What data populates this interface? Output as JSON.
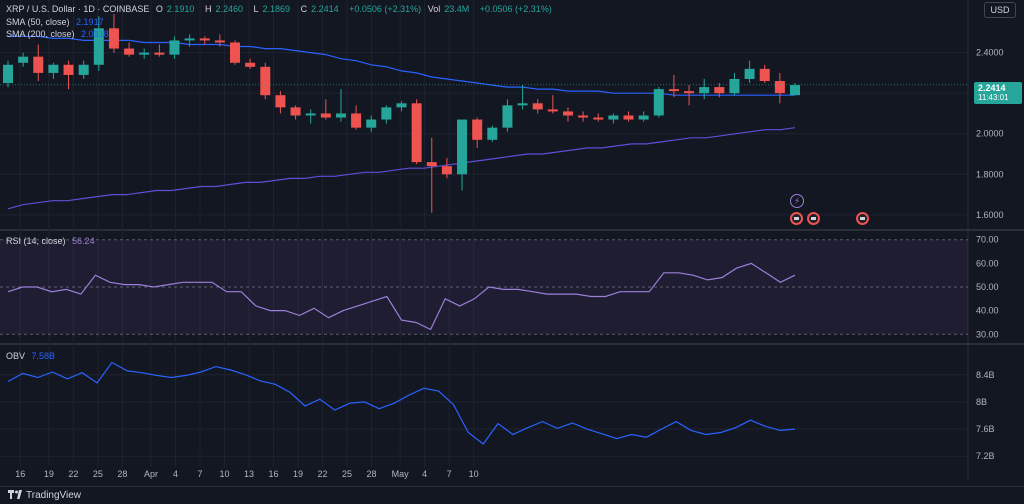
{
  "header": {
    "symbol": "XRP / U.S. Dollar · 1D · COINBASE",
    "o_label": "O",
    "o_value": "2.1910",
    "h_label": "H",
    "h_value": "2.2460",
    "l_label": "L",
    "l_value": "2.1869",
    "c_label": "C",
    "c_value": "2.2414",
    "change": "+0.0506 (+2.31%)",
    "vol_label": "Vol",
    "vol_value": "23.4M",
    "vol_change": "+0.0506 (+2.31%)"
  },
  "indicators": {
    "sma50_label": "SMA (50, close)",
    "sma50_value": "2.1917",
    "sma200_label": "SMA (200, close)",
    "sma200_value": "2.0318",
    "rsi_label": "RSI (14, close)",
    "rsi_value": "56.24",
    "obv_label": "OBV",
    "obv_value": "7.58B"
  },
  "currency": "USD",
  "price_tag": {
    "price": "2.2414",
    "countdown": "11:43:01"
  },
  "footer": {
    "brand": "TradingView"
  },
  "colors": {
    "up": "#26a69a",
    "down": "#ef5350",
    "sma50": "#2962ff",
    "sma200": "#5b4fd8",
    "rsi": "#9c7fd8",
    "obv": "#2962ff"
  },
  "chart_data": [
    {
      "type": "candlestick",
      "title": "XRP / U.S. Dollar · 1D · COINBASE",
      "x_tick_labels": [
        "16",
        "19",
        "22",
        "25",
        "28",
        "Apr",
        "4",
        "7",
        "10",
        "13",
        "16",
        "19",
        "22",
        "25",
        "28",
        "May",
        "4",
        "7",
        "10"
      ],
      "y_tick_labels": [
        "1.6000",
        "1.8000",
        "2.0000",
        "2.2000",
        "2.4000"
      ],
      "ylim": [
        1.55,
        2.62
      ],
      "ohlc": [
        [
          2.25,
          2.36,
          2.23,
          2.34
        ],
        [
          2.35,
          2.4,
          2.33,
          2.38
        ],
        [
          2.38,
          2.44,
          2.26,
          2.3
        ],
        [
          2.3,
          2.35,
          2.27,
          2.34
        ],
        [
          2.34,
          2.36,
          2.22,
          2.29
        ],
        [
          2.29,
          2.36,
          2.27,
          2.34
        ],
        [
          2.34,
          2.58,
          2.31,
          2.52
        ],
        [
          2.52,
          2.59,
          2.4,
          2.42
        ],
        [
          2.42,
          2.45,
          2.38,
          2.39
        ],
        [
          2.39,
          2.42,
          2.37,
          2.4
        ],
        [
          2.4,
          2.44,
          2.38,
          2.39
        ],
        [
          2.39,
          2.48,
          2.37,
          2.46
        ],
        [
          2.46,
          2.49,
          2.43,
          2.47
        ],
        [
          2.47,
          2.48,
          2.44,
          2.46
        ],
        [
          2.46,
          2.49,
          2.43,
          2.45
        ],
        [
          2.45,
          2.46,
          2.34,
          2.35
        ],
        [
          2.35,
          2.37,
          2.32,
          2.33
        ],
        [
          2.33,
          2.35,
          2.17,
          2.19
        ],
        [
          2.19,
          2.21,
          2.1,
          2.13
        ],
        [
          2.13,
          2.14,
          2.07,
          2.09
        ],
        [
          2.09,
          2.12,
          2.05,
          2.1
        ],
        [
          2.1,
          2.17,
          2.07,
          2.08
        ],
        [
          2.08,
          2.22,
          2.06,
          2.1
        ],
        [
          2.1,
          2.14,
          2.02,
          2.03
        ],
        [
          2.03,
          2.09,
          2.01,
          2.07
        ],
        [
          2.07,
          2.14,
          2.05,
          2.13
        ],
        [
          2.13,
          2.16,
          2.11,
          2.15
        ],
        [
          2.15,
          2.17,
          1.85,
          1.86
        ],
        [
          1.86,
          1.98,
          1.61,
          1.84
        ],
        [
          1.84,
          1.88,
          1.78,
          1.8
        ],
        [
          1.8,
          2.06,
          1.72,
          2.07
        ],
        [
          2.07,
          2.08,
          1.93,
          1.97
        ],
        [
          1.97,
          2.04,
          1.96,
          2.03
        ],
        [
          2.03,
          2.17,
          2.01,
          2.14
        ],
        [
          2.14,
          2.24,
          2.12,
          2.15
        ],
        [
          2.15,
          2.17,
          2.1,
          2.12
        ],
        [
          2.12,
          2.19,
          2.1,
          2.11
        ],
        [
          2.11,
          2.13,
          2.06,
          2.09
        ],
        [
          2.09,
          2.11,
          2.06,
          2.08
        ],
        [
          2.08,
          2.1,
          2.06,
          2.07
        ],
        [
          2.07,
          2.1,
          2.05,
          2.09
        ],
        [
          2.09,
          2.11,
          2.06,
          2.07
        ],
        [
          2.07,
          2.11,
          2.06,
          2.09
        ],
        [
          2.09,
          2.23,
          2.08,
          2.22
        ],
        [
          2.22,
          2.29,
          2.18,
          2.21
        ],
        [
          2.21,
          2.24,
          2.14,
          2.2
        ],
        [
          2.2,
          2.27,
          2.17,
          2.23
        ],
        [
          2.23,
          2.25,
          2.18,
          2.2
        ],
        [
          2.2,
          2.3,
          2.19,
          2.27
        ],
        [
          2.27,
          2.36,
          2.25,
          2.32
        ],
        [
          2.32,
          2.34,
          2.25,
          2.26
        ],
        [
          2.26,
          2.3,
          2.15,
          2.2
        ],
        [
          2.19,
          2.25,
          2.19,
          2.24
        ]
      ],
      "sma50": [
        2.48,
        2.48,
        2.48,
        2.47,
        2.47,
        2.46,
        2.46,
        2.46,
        2.46,
        2.45,
        2.45,
        2.45,
        2.44,
        2.44,
        2.44,
        2.43,
        2.43,
        2.42,
        2.42,
        2.41,
        2.4,
        2.39,
        2.37,
        2.36,
        2.34,
        2.33,
        2.31,
        2.3,
        2.28,
        2.27,
        2.26,
        2.25,
        2.24,
        2.23,
        2.23,
        2.22,
        2.22,
        2.21,
        2.21,
        2.21,
        2.2,
        2.2,
        2.2,
        2.2,
        2.19,
        2.19,
        2.19,
        2.19,
        2.19,
        2.19,
        2.19,
        2.19,
        2.19
      ],
      "sma200": [
        1.65,
        1.66,
        1.67,
        1.67,
        1.68,
        1.69,
        1.7,
        1.7,
        1.71,
        1.72,
        1.72,
        1.73,
        1.74,
        1.74,
        1.75,
        1.76,
        1.76,
        1.77,
        1.78,
        1.78,
        1.79,
        1.79,
        1.8,
        1.81,
        1.81,
        1.82,
        1.83,
        1.83,
        1.84,
        1.85,
        1.86,
        1.87,
        1.88,
        1.89,
        1.9,
        1.9,
        1.91,
        1.92,
        1.93,
        1.93,
        1.94,
        1.95,
        1.95,
        1.96,
        1.97,
        1.98,
        1.98,
        1.99,
        2.0,
        2.01,
        2.02,
        2.02,
        2.03
      ]
    },
    {
      "type": "line",
      "title": "RSI (14, close)",
      "y_tick_labels": [
        "30.00",
        "40.00",
        "50.00",
        "60.00",
        "70.00"
      ],
      "ylim": [
        28,
        72
      ],
      "band": [
        30,
        70
      ],
      "midline": 50,
      "values": [
        48,
        50,
        50,
        48,
        49,
        47,
        55,
        52,
        51,
        51,
        50,
        51,
        52,
        52,
        52,
        48,
        48,
        42,
        40,
        40,
        38,
        41,
        37,
        40,
        42,
        44,
        46,
        36,
        35,
        32,
        45,
        42,
        45,
        50,
        49,
        49,
        48,
        47,
        47,
        47,
        46,
        46,
        48,
        48,
        48,
        56,
        56,
        55,
        53,
        54,
        58,
        60,
        56,
        52,
        55
      ]
    },
    {
      "type": "line",
      "title": "OBV",
      "y_tick_labels": [
        "8.4B",
        "8B",
        "7.6B",
        "7.2B"
      ],
      "ylim": [
        7.1,
        8.75
      ],
      "values": [
        8.3,
        8.42,
        8.36,
        8.44,
        8.34,
        8.43,
        8.28,
        8.58,
        8.46,
        8.43,
        8.39,
        8.36,
        8.39,
        8.44,
        8.52,
        8.47,
        8.4,
        8.31,
        8.26,
        8.14,
        7.94,
        8.04,
        7.88,
        7.98,
        8.0,
        7.9,
        7.98,
        8.1,
        8.2,
        8.16,
        7.96,
        7.55,
        7.38,
        7.68,
        7.52,
        7.62,
        7.71,
        7.61,
        7.69,
        7.6,
        7.53,
        7.46,
        7.52,
        7.48,
        7.6,
        7.71,
        7.58,
        7.52,
        7.55,
        7.62,
        7.73,
        7.64,
        7.58,
        7.6
      ]
    }
  ]
}
